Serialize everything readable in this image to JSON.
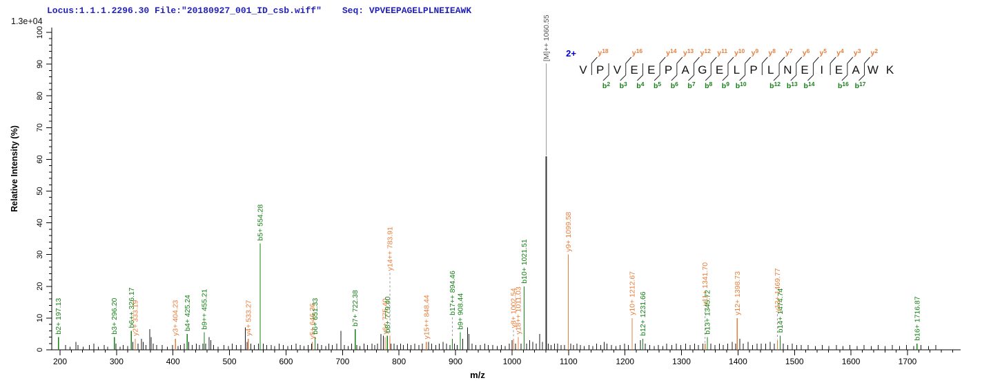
{
  "header": {
    "locus_text": "Locus:1.1.1.2296.30 File:\"20180927_001_ID_csb.wiff\"",
    "seq_label": "Seq: ",
    "seq_value": "VPVEEPAGELPLNEIEAWK",
    "intensity_scale": "1.3e+04"
  },
  "precursor": {
    "charge_label": "2+"
  },
  "peptide": {
    "residues": [
      "V",
      "P",
      "V",
      "E",
      "E",
      "P",
      "A",
      "G",
      "E",
      "L",
      "P",
      "L",
      "N",
      "E",
      "I",
      "E",
      "A",
      "W",
      "K"
    ],
    "y_ions": [
      {
        "after_residue": 1,
        "n": 18
      },
      {
        "after_residue": 3,
        "n": 16
      },
      {
        "after_residue": 5,
        "n": 14
      },
      {
        "after_residue": 6,
        "n": 13
      },
      {
        "after_residue": 7,
        "n": 12
      },
      {
        "after_residue": 8,
        "n": 11
      },
      {
        "after_residue": 9,
        "n": 10
      },
      {
        "after_residue": 10,
        "n": 9
      },
      {
        "after_residue": 11,
        "n": 8
      },
      {
        "after_residue": 12,
        "n": 7
      },
      {
        "after_residue": 13,
        "n": 6
      },
      {
        "after_residue": 14,
        "n": 5
      },
      {
        "after_residue": 15,
        "n": 4
      },
      {
        "after_residue": 16,
        "n": 3
      },
      {
        "after_residue": 17,
        "n": 2
      }
    ],
    "b_ions": [
      {
        "after_residue": 2,
        "n": 2
      },
      {
        "after_residue": 3,
        "n": 3
      },
      {
        "after_residue": 4,
        "n": 4
      },
      {
        "after_residue": 5,
        "n": 5
      },
      {
        "after_residue": 6,
        "n": 6
      },
      {
        "after_residue": 7,
        "n": 7
      },
      {
        "after_residue": 8,
        "n": 8
      },
      {
        "after_residue": 9,
        "n": 9
      },
      {
        "after_residue": 10,
        "n": 10
      },
      {
        "after_residue": 12,
        "n": 12
      },
      {
        "after_residue": 13,
        "n": 13
      },
      {
        "after_residue": 14,
        "n": 14
      },
      {
        "after_residue": 16,
        "n": 16
      },
      {
        "after_residue": 17,
        "n": 17
      }
    ]
  },
  "chart_data": {
    "type": "spectrum",
    "xlabel": "m/z",
    "ylabel": "Relative  Intensity (%)",
    "xlim": [
      185,
      1790
    ],
    "ylim": [
      0,
      100
    ],
    "x_major_ticks": [
      200,
      300,
      400,
      500,
      600,
      700,
      800,
      900,
      1000,
      1100,
      1200,
      1300,
      1400,
      1500,
      1600,
      1700
    ],
    "x_minor_step": 20,
    "y_major_ticks": [
      0,
      10,
      20,
      30,
      40,
      50,
      60,
      70,
      80,
      90,
      100
    ],
    "y_minor_step": 2,
    "intensity_scale_max": "1.3e+04",
    "labeled_peaks": [
      {
        "label": "b2+ 197.13",
        "mz": 197.13,
        "intensity_pct": 4,
        "ion": "b"
      },
      {
        "label": "b3+ 296.20",
        "mz": 296.2,
        "intensity_pct": 4,
        "ion": "b"
      },
      {
        "label": "b6++ 326.17",
        "mz": 326.17,
        "intensity_pct": 6,
        "ion": "b"
      },
      {
        "label": "y2+ 333.19",
        "mz": 333.19,
        "intensity_pct": 3.5,
        "ion": "y"
      },
      {
        "label": "y3+ 404.23",
        "mz": 404.23,
        "intensity_pct": 3.5,
        "ion": "y"
      },
      {
        "label": "b4+ 425.24",
        "mz": 425.24,
        "intensity_pct": 5,
        "ion": "b"
      },
      {
        "label": "b9++ 455.21",
        "mz": 455.21,
        "intensity_pct": 5.5,
        "ion": "b"
      },
      {
        "label": "y4+ 533.27",
        "mz": 533.27,
        "intensity_pct": 3.5,
        "ion": "y"
      },
      {
        "label": "b5+ 554.28",
        "mz": 554.28,
        "intensity_pct": 33.5,
        "ion": "b"
      },
      {
        "label": "y5+ 646.36",
        "mz": 646.36,
        "intensity_pct": 2.5,
        "ion": "y"
      },
      {
        "label": "b6+ 651.33",
        "mz": 651.33,
        "intensity_pct": 4,
        "ion": "b"
      },
      {
        "label": "b7+ 722.38",
        "mz": 722.38,
        "intensity_pct": 6.5,
        "ion": "b"
      },
      {
        "label": "y6+ 775.40",
        "mz": 775.4,
        "intensity_pct": 4,
        "ion": "y"
      },
      {
        "label": "b8+ 779.40",
        "mz": 779.4,
        "intensity_pct": 4.5,
        "ion": "b"
      },
      {
        "label": "y14++ 783.91",
        "mz": 783.91,
        "intensity_pct": 4.5,
        "ion": "y",
        "label_pct": 24,
        "leader": "dashed"
      },
      {
        "label": "y15++ 848.44",
        "mz": 848.44,
        "intensity_pct": 2.5,
        "ion": "y"
      },
      {
        "label": "b17++ 894.46",
        "mz": 894.46,
        "intensity_pct": 3.5,
        "ion": "b",
        "label_pct": 10,
        "leader": "dashed"
      },
      {
        "label": "b9+ 908.44",
        "mz": 908.44,
        "intensity_pct": 5.5,
        "ion": "b"
      },
      {
        "label": "y8+ 1002.54",
        "mz": 1002.54,
        "intensity_pct": 3.5,
        "ion": "y",
        "label_pct": 6,
        "leader": "dashed"
      },
      {
        "label": "y18++ 1011.03",
        "mz": 1011.03,
        "intensity_pct": 4,
        "ion": "y"
      },
      {
        "label": "b10+ 1021.51",
        "mz": 1021.51,
        "intensity_pct": 20,
        "ion": "b"
      },
      {
        "label": "[M]++ 1060.55",
        "mz": 1060.55,
        "intensity_pct": 61,
        "ion": "precursor",
        "label_pct": 90,
        "leader": "solid"
      },
      {
        "label": "y9+ 1099.58",
        "mz": 1099.58,
        "intensity_pct": 30,
        "ion": "y"
      },
      {
        "label": "y10+ 1212.67",
        "mz": 1212.67,
        "intensity_pct": 10,
        "ion": "y"
      },
      {
        "label": "b12+ 1231.66",
        "mz": 1231.66,
        "intensity_pct": 3.5,
        "ion": "b"
      },
      {
        "label": "y11+ 1341.70",
        "mz": 1341.7,
        "intensity_pct": 2,
        "ion": "y",
        "label_pct": 13,
        "leader": "dashed"
      },
      {
        "label": "b13+ 1345.72",
        "mz": 1345.72,
        "intensity_pct": 4,
        "ion": "b"
      },
      {
        "label": "y12+ 1398.73",
        "mz": 1398.73,
        "intensity_pct": 10,
        "ion": "y"
      },
      {
        "label": "y13+ 1469.77",
        "mz": 1469.77,
        "intensity_pct": 3,
        "ion": "y",
        "label_pct": 11,
        "leader": "dashed"
      },
      {
        "label": "b14+ 1474.74",
        "mz": 1474.74,
        "intensity_pct": 4.5,
        "ion": "b"
      },
      {
        "label": "b16+ 1716.87",
        "mz": 1716.87,
        "intensity_pct": 2,
        "ion": "b"
      }
    ],
    "unlabeled_peaks": [
      [
        210,
        1.5
      ],
      [
        218,
        1
      ],
      [
        228,
        2.5
      ],
      [
        232,
        1.5
      ],
      [
        241,
        1
      ],
      [
        252,
        1.5
      ],
      [
        260,
        2
      ],
      [
        268,
        1
      ],
      [
        278,
        1.5
      ],
      [
        284,
        1
      ],
      [
        299,
        2
      ],
      [
        306,
        1
      ],
      [
        312,
        1.5
      ],
      [
        320,
        1.2
      ],
      [
        329,
        2.5
      ],
      [
        338,
        2
      ],
      [
        344,
        3.5
      ],
      [
        347,
        2.5
      ],
      [
        352,
        1.5
      ],
      [
        359,
        6.5
      ],
      [
        361,
        4
      ],
      [
        365,
        2
      ],
      [
        371,
        1.5
      ],
      [
        381,
        1.5
      ],
      [
        390,
        1
      ],
      [
        399,
        1.5
      ],
      [
        409,
        1.2
      ],
      [
        413,
        1.5
      ],
      [
        420,
        2
      ],
      [
        428,
        2.5
      ],
      [
        434,
        1.5
      ],
      [
        441,
        2
      ],
      [
        447,
        1.5
      ],
      [
        453,
        2
      ],
      [
        458,
        2
      ],
      [
        464,
        4
      ],
      [
        467,
        3
      ],
      [
        472,
        1.5
      ],
      [
        480,
        1
      ],
      [
        490,
        1.5
      ],
      [
        498,
        1.2
      ],
      [
        505,
        2
      ],
      [
        512,
        1.5
      ],
      [
        520,
        1.5
      ],
      [
        528,
        7
      ],
      [
        531,
        2.5
      ],
      [
        538,
        2
      ],
      [
        544,
        1.5
      ],
      [
        551,
        2
      ],
      [
        560,
        2
      ],
      [
        566,
        1.5
      ],
      [
        574,
        1.5
      ],
      [
        580,
        1.2
      ],
      [
        588,
        2
      ],
      [
        595,
        1.5
      ],
      [
        603,
        1.2
      ],
      [
        610,
        1.5
      ],
      [
        618,
        2
      ],
      [
        625,
        1.5
      ],
      [
        632,
        1.2
      ],
      [
        639,
        1.5
      ],
      [
        645,
        2
      ],
      [
        656,
        2
      ],
      [
        663,
        1.5
      ],
      [
        670,
        1.2
      ],
      [
        676,
        2
      ],
      [
        682,
        1.5
      ],
      [
        690,
        2
      ],
      [
        697,
        6
      ],
      [
        703,
        1.5
      ],
      [
        710,
        1.2
      ],
      [
        716,
        2
      ],
      [
        725,
        1.5
      ],
      [
        731,
        1.2
      ],
      [
        738,
        2
      ],
      [
        744,
        1.5
      ],
      [
        752,
        2
      ],
      [
        757,
        1.5
      ],
      [
        762,
        2
      ],
      [
        768,
        5
      ],
      [
        772,
        4.5
      ],
      [
        786,
        2
      ],
      [
        791,
        2
      ],
      [
        797,
        1.5
      ],
      [
        803,
        2
      ],
      [
        808,
        1.5
      ],
      [
        815,
        2
      ],
      [
        821,
        1.5
      ],
      [
        828,
        2
      ],
      [
        835,
        1.5
      ],
      [
        841,
        2
      ],
      [
        852,
        2.5
      ],
      [
        858,
        2
      ],
      [
        865,
        1.5
      ],
      [
        871,
        2
      ],
      [
        878,
        2.5
      ],
      [
        884,
        2
      ],
      [
        890,
        1.5
      ],
      [
        898,
        2
      ],
      [
        903,
        1.5
      ],
      [
        913,
        3.5
      ],
      [
        921,
        7
      ],
      [
        924,
        5
      ],
      [
        929,
        2
      ],
      [
        936,
        1.5
      ],
      [
        944,
        1.5
      ],
      [
        952,
        2
      ],
      [
        958,
        1.5
      ],
      [
        966,
        1.5
      ],
      [
        974,
        1.2
      ],
      [
        981,
        1.5
      ],
      [
        988,
        1.2
      ],
      [
        995,
        2
      ],
      [
        1000,
        3
      ],
      [
        1006,
        2
      ],
      [
        1016,
        2
      ],
      [
        1026,
        2
      ],
      [
        1031,
        3
      ],
      [
        1037,
        2.5
      ],
      [
        1043,
        2
      ],
      [
        1049,
        5
      ],
      [
        1054,
        2.5
      ],
      [
        1064,
        2
      ],
      [
        1069,
        1.5
      ],
      [
        1075,
        2
      ],
      [
        1081,
        2
      ],
      [
        1087,
        1.5
      ],
      [
        1093,
        1.5
      ],
      [
        1104,
        2
      ],
      [
        1109,
        1.5
      ],
      [
        1115,
        2
      ],
      [
        1121,
        1.5
      ],
      [
        1128,
        1.2
      ],
      [
        1136,
        1.5
      ],
      [
        1143,
        1.2
      ],
      [
        1150,
        2
      ],
      [
        1157,
        1.5
      ],
      [
        1163,
        2.5
      ],
      [
        1168,
        2
      ],
      [
        1176,
        1.5
      ],
      [
        1184,
        1.2
      ],
      [
        1191,
        1.5
      ],
      [
        1199,
        2
      ],
      [
        1206,
        1.5
      ],
      [
        1218,
        2
      ],
      [
        1227,
        3
      ],
      [
        1236,
        2
      ],
      [
        1244,
        1.5
      ],
      [
        1252,
        1.2
      ],
      [
        1259,
        1.5
      ],
      [
        1267,
        1.2
      ],
      [
        1274,
        2
      ],
      [
        1283,
        1.5
      ],
      [
        1291,
        2
      ],
      [
        1299,
        1.5
      ],
      [
        1307,
        2
      ],
      [
        1315,
        1.5
      ],
      [
        1323,
        2
      ],
      [
        1330,
        1.5
      ],
      [
        1338,
        2
      ],
      [
        1352,
        2
      ],
      [
        1359,
        1.5
      ],
      [
        1367,
        2
      ],
      [
        1374,
        1.5
      ],
      [
        1382,
        2
      ],
      [
        1390,
        2.5
      ],
      [
        1396,
        2
      ],
      [
        1403,
        3.5
      ],
      [
        1409,
        2
      ],
      [
        1418,
        2.5
      ],
      [
        1426,
        1.5
      ],
      [
        1434,
        2
      ],
      [
        1441,
        2
      ],
      [
        1449,
        2
      ],
      [
        1457,
        2.5
      ],
      [
        1464,
        2
      ],
      [
        1480,
        2
      ],
      [
        1488,
        1.5
      ],
      [
        1496,
        2
      ],
      [
        1504,
        1.5
      ],
      [
        1512,
        1.5
      ],
      [
        1524,
        1.5
      ],
      [
        1537,
        1.2
      ],
      [
        1549,
        1.5
      ],
      [
        1561,
        1.2
      ],
      [
        1574,
        1.5
      ],
      [
        1586,
        1.2
      ],
      [
        1598,
        1.5
      ],
      [
        1611,
        1.2
      ],
      [
        1623,
        1.5
      ],
      [
        1636,
        1.2
      ],
      [
        1648,
        1.5
      ],
      [
        1660,
        1.2
      ],
      [
        1673,
        1.5
      ],
      [
        1686,
        1.2
      ],
      [
        1698,
        1.5
      ],
      [
        1711,
        1.2
      ],
      [
        1724,
        1.5
      ],
      [
        1737,
        1.2
      ],
      [
        1750,
        1.5
      ]
    ]
  },
  "colors": {
    "b_ion": "#168016",
    "y_ion": "#e87d3a",
    "precursor_peak": "#333333",
    "precursor_label": "#555555",
    "leader": "#999999",
    "noise_peak": "#1a1a1a",
    "header_text": "#2222bb",
    "charge_text": "#0000cc",
    "axis": "#000000"
  }
}
